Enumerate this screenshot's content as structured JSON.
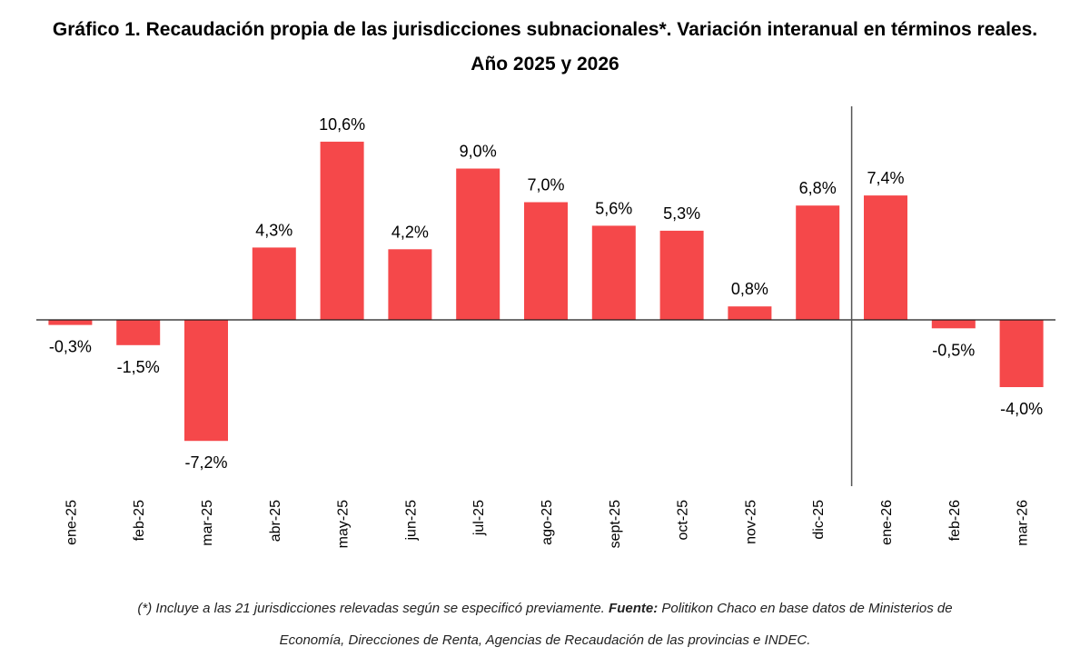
{
  "chart_data": {
    "type": "bar",
    "title": "Gráfico 1. Recaudación propia de las jurisdicciones subnacionales*. Variación interanual en términos reales.",
    "subtitle": "Año 2025 y 2026",
    "xlabel": "",
    "ylabel": "",
    "categories": [
      "ene-25",
      "feb-25",
      "mar-25",
      "abr-25",
      "may-25",
      "jun-25",
      "jul-25",
      "ago-25",
      "sept-25",
      "oct-25",
      "nov-25",
      "dic-25",
      "ene-26",
      "feb-26",
      "mar-26"
    ],
    "values": [
      -0.3,
      -1.5,
      -7.2,
      4.3,
      10.6,
      4.2,
      9.0,
      7.0,
      5.6,
      5.3,
      0.8,
      6.8,
      7.4,
      -0.5,
      -4.0
    ],
    "data_labels": [
      "-0,3%",
      "-1,5%",
      "-7,2%",
      "4,3%",
      "10,6%",
      "4,2%",
      "9,0%",
      "7,0%",
      "5,6%",
      "5,3%",
      "0,8%",
      "6,8%",
      "7,4%",
      "-0,5%",
      "-4,0%"
    ],
    "ylim": [
      -10,
      12.5
    ],
    "grid": false,
    "legend": "none",
    "bar_color": "#f5484a",
    "separator_after_category": "dic-25"
  },
  "footnote": {
    "part1": "(*) Incluye a las 21 jurisdicciones relevadas según se especificó previamente. ",
    "source_label": "Fuente:",
    "part2": " Politikon Chaco en base datos de Ministerios de",
    "line2": "Economía, Direcciones de Renta, Agencias de Recaudación de las provincias e INDEC."
  }
}
